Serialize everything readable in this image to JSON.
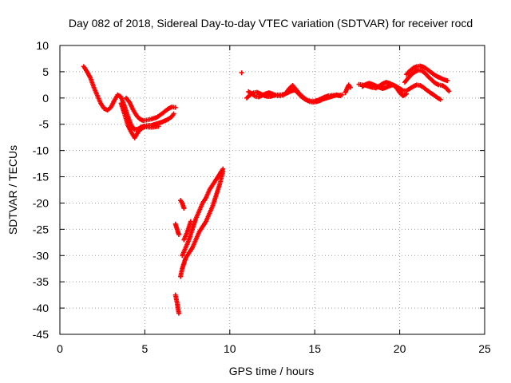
{
  "chart_data": {
    "type": "scatter",
    "title": "Day 082 of 2018, Sidereal Day-to-day VTEC variation (SDTVAR) for receiver rocd",
    "xlabel": "GPS time / hours",
    "ylabel": "SDTVAR / TECUs",
    "xlim": [
      0,
      25
    ],
    "ylim": [
      -45,
      10
    ],
    "xticks": [
      "0",
      "5",
      "10",
      "15",
      "20",
      "25"
    ],
    "yticks": [
      "10",
      "5",
      "0",
      "-5",
      "-10",
      "-15",
      "-20",
      "-25",
      "-30",
      "-35",
      "-40",
      "-45"
    ],
    "xtick_values": [
      0,
      5,
      10,
      15,
      20,
      25
    ],
    "ytick_values": [
      10,
      5,
      0,
      -5,
      -10,
      -15,
      -20,
      -25,
      -30,
      -35,
      -40,
      -45
    ],
    "grid": true,
    "marker": "plus",
    "color": "#ff0000",
    "series": [
      {
        "values": [
          [
            1.4,
            6.0
          ],
          [
            1.6,
            5.0
          ],
          [
            1.8,
            3.8
          ],
          [
            2.0,
            2.0
          ],
          [
            2.2,
            0.5
          ],
          [
            2.4,
            -1.0
          ],
          [
            2.6,
            -2.0
          ],
          [
            2.8,
            -2.3
          ],
          [
            3.0,
            -1.8
          ],
          [
            3.2,
            -0.5
          ],
          [
            3.4,
            0.6
          ],
          [
            3.6,
            0.2
          ],
          [
            3.8,
            -1.5
          ],
          [
            4.0,
            -3.5
          ],
          [
            4.2,
            -5.2
          ],
          [
            4.4,
            -6.0
          ],
          [
            4.6,
            -5.9
          ],
          [
            4.8,
            -5.5
          ],
          [
            5.0,
            -5.3
          ],
          [
            5.2,
            -5.2
          ],
          [
            5.4,
            -5.2
          ],
          [
            5.6,
            -5.0
          ],
          [
            5.8,
            -4.8
          ],
          [
            6.0,
            -4.6
          ],
          [
            6.2,
            -4.3
          ],
          [
            6.4,
            -4.0
          ],
          [
            6.6,
            -3.5
          ],
          [
            6.7,
            -3.0
          ]
        ]
      },
      {
        "values": [
          [
            3.6,
            -1.0
          ],
          [
            3.8,
            -3.0
          ],
          [
            4.0,
            -5.2
          ],
          [
            4.2,
            -6.5
          ],
          [
            4.4,
            -7.6
          ],
          [
            4.6,
            -6.5
          ],
          [
            4.8,
            -5.8
          ],
          [
            5.0,
            -5.5
          ],
          [
            5.4,
            -5.6
          ],
          [
            5.8,
            -5.4
          ]
        ]
      },
      {
        "values": [
          [
            3.9,
            0.0
          ],
          [
            4.1,
            -0.8
          ],
          [
            4.3,
            -2.2
          ],
          [
            4.5,
            -3.3
          ],
          [
            4.7,
            -4.0
          ],
          [
            4.9,
            -4.3
          ],
          [
            5.1,
            -4.2
          ],
          [
            5.4,
            -4.0
          ],
          [
            5.7,
            -3.7
          ],
          [
            6.0,
            -3.0
          ],
          [
            6.2,
            -2.5
          ],
          [
            6.4,
            -2.0
          ],
          [
            6.6,
            -1.7
          ],
          [
            6.8,
            -1.8
          ]
        ]
      },
      {
        "values": [
          [
            6.8,
            -24.0
          ],
          [
            6.9,
            -25.0
          ],
          [
            7.0,
            -26.0
          ]
        ]
      },
      {
        "values": [
          [
            7.1,
            -19.5
          ],
          [
            7.2,
            -20.0
          ],
          [
            7.3,
            -21.0
          ]
        ]
      },
      {
        "values": [
          [
            6.8,
            -37.5
          ],
          [
            6.9,
            -39.0
          ],
          [
            7.0,
            -41.0
          ]
        ]
      },
      {
        "values": [
          [
            7.1,
            -34.0
          ],
          [
            7.2,
            -32.5
          ],
          [
            7.3,
            -31.5
          ],
          [
            7.4,
            -30.5
          ],
          [
            7.6,
            -29.5
          ],
          [
            7.8,
            -28.5
          ],
          [
            8.0,
            -27.0
          ],
          [
            8.2,
            -25.5
          ],
          [
            8.4,
            -24.5
          ],
          [
            8.6,
            -23.5
          ],
          [
            8.8,
            -22.0
          ],
          [
            9.0,
            -20.5
          ],
          [
            9.2,
            -18.5
          ],
          [
            9.4,
            -16.5
          ],
          [
            9.6,
            -14.0
          ]
        ]
      },
      {
        "values": [
          [
            7.2,
            -30.0
          ],
          [
            7.4,
            -28.5
          ],
          [
            7.6,
            -27.0
          ],
          [
            7.8,
            -25.0
          ],
          [
            8.0,
            -23.0
          ],
          [
            8.2,
            -21.5
          ],
          [
            8.4,
            -20.0
          ],
          [
            8.6,
            -19.0
          ],
          [
            8.8,
            -17.5
          ],
          [
            9.0,
            -16.5
          ],
          [
            9.2,
            -15.5
          ],
          [
            9.4,
            -14.5
          ],
          [
            9.6,
            -13.5
          ]
        ]
      },
      {
        "values": [
          [
            7.3,
            -27.0
          ],
          [
            7.5,
            -25.5
          ],
          [
            7.7,
            -23.5
          ]
        ]
      },
      {
        "values": [
          [
            10.7,
            4.8
          ]
        ]
      },
      {
        "values": [
          [
            11.0,
            0.0
          ],
          [
            11.2,
            0.6
          ],
          [
            11.4,
            1.0
          ],
          [
            11.6,
            1.1
          ],
          [
            11.8,
            0.8
          ],
          [
            12.0,
            0.5
          ],
          [
            12.2,
            0.3
          ],
          [
            12.4,
            0.3
          ],
          [
            12.6,
            0.5
          ],
          [
            12.8,
            0.6
          ],
          [
            13.0,
            0.6
          ],
          [
            13.2,
            0.7
          ],
          [
            13.4,
            1.0
          ],
          [
            13.6,
            1.3
          ],
          [
            13.8,
            1.5
          ],
          [
            14.0,
            1.0
          ],
          [
            14.2,
            0.3
          ],
          [
            14.4,
            -0.2
          ],
          [
            14.6,
            -0.5
          ],
          [
            14.8,
            -0.6
          ],
          [
            15.0,
            -0.6
          ],
          [
            15.2,
            -0.4
          ],
          [
            15.4,
            -0.1
          ],
          [
            15.6,
            0.2
          ],
          [
            15.8,
            0.4
          ],
          [
            16.0,
            0.5
          ],
          [
            16.2,
            0.5
          ],
          [
            16.4,
            0.5
          ],
          [
            16.6,
            0.6
          ]
        ]
      },
      {
        "values": [
          [
            11.1,
            1.2
          ],
          [
            11.3,
            0.8
          ],
          [
            11.5,
            0.3
          ],
          [
            11.7,
            0.2
          ],
          [
            11.9,
            0.5
          ],
          [
            12.1,
            0.8
          ],
          [
            12.3,
            1.0
          ],
          [
            12.5,
            0.8
          ],
          [
            12.7,
            0.5
          ],
          [
            12.9,
            0.4
          ],
          [
            13.1,
            0.5
          ],
          [
            13.3,
            0.9
          ],
          [
            13.5,
            1.8
          ],
          [
            13.7,
            2.4
          ],
          [
            13.9,
            1.6
          ],
          [
            14.1,
            0.8
          ],
          [
            14.3,
            0.2
          ],
          [
            14.5,
            -0.3
          ],
          [
            14.7,
            -0.7
          ],
          [
            14.9,
            -0.8
          ],
          [
            15.1,
            -0.7
          ],
          [
            15.3,
            -0.5
          ],
          [
            15.5,
            -0.2
          ],
          [
            15.7,
            0.0
          ],
          [
            15.9,
            0.2
          ],
          [
            16.1,
            0.4
          ],
          [
            16.3,
            0.6
          ],
          [
            16.5,
            0.4
          ]
        ]
      },
      {
        "values": [
          [
            16.8,
            1.0
          ],
          [
            16.9,
            1.8
          ],
          [
            17.0,
            2.5
          ],
          [
            17.1,
            2.0
          ]
        ]
      },
      {
        "values": [
          [
            17.6,
            2.6
          ],
          [
            17.8,
            2.5
          ],
          [
            18.0,
            2.4
          ],
          [
            18.2,
            2.2
          ],
          [
            18.4,
            2.0
          ],
          [
            18.6,
            1.9
          ],
          [
            18.8,
            2.3
          ],
          [
            19.0,
            2.7
          ],
          [
            19.2,
            3.0
          ],
          [
            19.4,
            2.8
          ],
          [
            19.6,
            2.5
          ],
          [
            19.8,
            2.2
          ],
          [
            20.0,
            1.8
          ],
          [
            20.2,
            1.4
          ],
          [
            20.4,
            1.4
          ],
          [
            20.6,
            1.8
          ],
          [
            20.8,
            2.2
          ],
          [
            21.0,
            2.5
          ],
          [
            21.2,
            2.4
          ],
          [
            21.4,
            2.0
          ],
          [
            21.6,
            1.5
          ],
          [
            21.8,
            1.0
          ],
          [
            22.0,
            0.6
          ],
          [
            22.2,
            0.1
          ],
          [
            22.4,
            -0.3
          ]
        ]
      },
      {
        "values": [
          [
            17.8,
            2.2
          ],
          [
            18.0,
            2.6
          ],
          [
            18.2,
            2.8
          ],
          [
            18.4,
            2.6
          ],
          [
            18.6,
            2.3
          ],
          [
            18.8,
            2.0
          ],
          [
            19.0,
            1.8
          ],
          [
            19.2,
            2.0
          ],
          [
            19.4,
            2.3
          ],
          [
            19.6,
            2.5
          ],
          [
            19.8,
            2.0
          ],
          [
            20.0,
            1.0
          ],
          [
            20.2,
            0.4
          ],
          [
            20.4,
            0.8
          ]
        ]
      },
      {
        "values": [
          [
            20.4,
            4.5
          ],
          [
            20.6,
            5.2
          ],
          [
            20.8,
            5.7
          ],
          [
            21.0,
            6.0
          ],
          [
            21.2,
            6.1
          ],
          [
            21.4,
            5.9
          ],
          [
            21.6,
            5.5
          ],
          [
            21.8,
            5.0
          ],
          [
            22.0,
            4.5
          ],
          [
            22.2,
            4.1
          ],
          [
            22.4,
            3.8
          ],
          [
            22.6,
            3.5
          ],
          [
            22.8,
            3.3
          ]
        ]
      },
      {
        "values": [
          [
            20.3,
            3.0
          ],
          [
            20.5,
            3.8
          ],
          [
            20.7,
            4.5
          ],
          [
            20.9,
            5.0
          ],
          [
            21.1,
            5.3
          ],
          [
            21.3,
            5.2
          ],
          [
            21.5,
            4.7
          ],
          [
            21.7,
            4.0
          ],
          [
            21.9,
            3.4
          ],
          [
            22.1,
            2.8
          ],
          [
            22.3,
            2.5
          ],
          [
            22.5,
            2.4
          ],
          [
            22.7,
            2.0
          ],
          [
            22.9,
            1.3
          ]
        ]
      }
    ]
  }
}
